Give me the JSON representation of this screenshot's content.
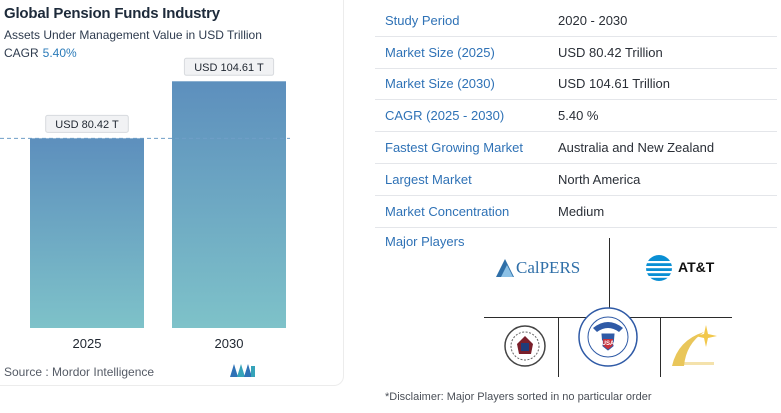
{
  "chart": {
    "title": "Global Pension Funds Industry",
    "subtitle": "Assets Under Management Value in USD Trillion",
    "cagr_label": "CAGR",
    "cagr_value": "5.40%",
    "source": "Source :  Mordor Intelligence",
    "bar_labels": [
      "USD 80.42 T",
      "USD 104.61 T"
    ]
  },
  "chart_data": {
    "type": "bar",
    "title": "Global Pension Funds Industry",
    "subtitle": "Assets Under Management Value in USD Trillion",
    "categories": [
      "2025",
      "2030"
    ],
    "values": [
      80.42,
      104.61
    ],
    "data_labels": [
      "USD 80.42 T",
      "USD 104.61 T"
    ],
    "xlabel": "",
    "ylabel": "",
    "ylim": [
      0,
      120
    ],
    "grid": false,
    "reference_line": 80.42,
    "bar_color_top": "#5d8fbd",
    "bar_color_bottom": "#7ec2c9"
  },
  "info": {
    "rows": [
      {
        "label": "Study Period",
        "value": "2020 - 2030"
      },
      {
        "label": "Market Size (2025)",
        "value": "USD 80.42 Trillion"
      },
      {
        "label": "Market Size (2030)",
        "value": "USD 104.61 Trillion"
      },
      {
        "label": "CAGR (2025 - 2030)",
        "value": "5.40 %"
      },
      {
        "label": "Fastest Growing Market",
        "value": "Australia and New Zealand"
      },
      {
        "label": "Largest Market",
        "value": "North America"
      },
      {
        "label": "Market Concentration",
        "value": "Medium"
      }
    ],
    "players_label": "Major Players",
    "players": {
      "calpers": "CalPERS",
      "att": "AT&T",
      "seal": "seal-logo",
      "ssa": "SOCIAL SECURITY ADMINISTRATION",
      "ssa_short": "USA",
      "sun": "sun-logo"
    },
    "disclaimer": "*Disclaimer: Major Players sorted in no particular order"
  },
  "colors": {
    "accent": "#2f72b6",
    "title": "#1d2a3a",
    "dashed_line": "#6f9fc8"
  },
  "icons": [
    "mordor-intelligence-logo",
    "calpers-logo",
    "att-globe-icon",
    "seal-logo",
    "ssa-seal-logo",
    "sun-logo"
  ]
}
